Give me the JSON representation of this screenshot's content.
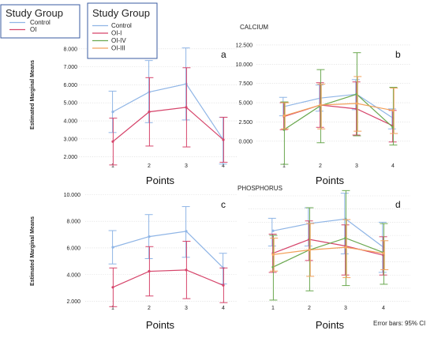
{
  "legends": [
    {
      "title": "Study Group",
      "items": [
        {
          "label": "Control",
          "color": "#8fb5e6"
        },
        {
          "label": "OI",
          "color": "#d6456b"
        }
      ]
    },
    {
      "title": "Study Group",
      "items": [
        {
          "label": "Control",
          "color": "#8fb5e6"
        },
        {
          "label": "OI-I",
          "color": "#d6456b"
        },
        {
          "label": "OI-IV",
          "color": "#6aa84f"
        },
        {
          "label": "OI-III",
          "color": "#f2a15c"
        }
      ]
    }
  ],
  "y_axis_label": "Estimated Marginal Means",
  "section_titles": {
    "calcium": "CALCIUM",
    "phosphorus": "PHOSPHORUS"
  },
  "error_bar_note": "Error bars: 95% CI",
  "chart_data": [
    {
      "panel": "a",
      "type": "line",
      "title": "",
      "xlabel": "Points",
      "ylabel": "Estimated Marginal Means",
      "x": [
        1,
        2,
        3,
        4
      ],
      "xticks": [
        "1",
        "2",
        "3",
        "4"
      ],
      "ylim": [
        1.5,
        8.3
      ],
      "yticks": [
        "2.000",
        "3.000",
        "4.000",
        "5.000",
        "6.000",
        "7.000",
        "8.000"
      ],
      "series": [
        {
          "name": "Control",
          "color": "#8fb5e6",
          "values": [
            4.5,
            5.6,
            6.05,
            2.95
          ],
          "ci": [
            [
              3.35,
              5.65
            ],
            [
              3.9,
              7.35
            ],
            [
              4.05,
              8.05
            ],
            [
              1.6,
              4.2
            ]
          ]
        },
        {
          "name": "OI",
          "color": "#d6456b",
          "values": [
            2.85,
            4.5,
            4.75,
            2.95
          ],
          "ci": [
            [
              1.55,
              4.15
            ],
            [
              2.6,
              6.4
            ],
            [
              2.55,
              6.95
            ],
            [
              1.7,
              4.2
            ]
          ]
        }
      ]
    },
    {
      "panel": "b",
      "type": "line",
      "title": "CALCIUM",
      "xlabel": "Points",
      "ylabel": "",
      "x": [
        1,
        2,
        3,
        4
      ],
      "xticks": [
        "1",
        "2",
        "3",
        "4"
      ],
      "ylim": [
        -3.2,
        12.7
      ],
      "yticks": [
        "0.000",
        "2.500",
        "5.000",
        "7.500",
        "10.000",
        "12.500"
      ],
      "series": [
        {
          "name": "Control",
          "color": "#8fb5e6",
          "values": [
            4.5,
            5.6,
            6.1,
            3.0
          ],
          "ci": [
            [
              3.3,
              5.7
            ],
            [
              3.9,
              7.3
            ],
            [
              4.1,
              8.0
            ],
            [
              1.6,
              4.2
            ]
          ]
        },
        {
          "name": "OI-I",
          "color": "#d6456b",
          "values": [
            3.2,
            4.7,
            4.2,
            2.0
          ],
          "ci": [
            [
              1.5,
              5.0
            ],
            [
              1.8,
              7.6
            ],
            [
              0.8,
              7.7
            ],
            [
              -0.1,
              4.0
            ]
          ]
        },
        {
          "name": "OI-IV",
          "color": "#6aa84f",
          "values": [
            1.5,
            4.6,
            6.1,
            1.8
          ],
          "ci": [
            [
              -3.0,
              5.1
            ],
            [
              -0.2,
              9.3
            ],
            [
              0.7,
              11.5
            ],
            [
              -0.5,
              7.0
            ]
          ]
        },
        {
          "name": "OI-III",
          "color": "#f2a15c",
          "values": [
            3.3,
            4.7,
            4.9,
            4.0
          ],
          "ci": [
            [
              1.6,
              5.0
            ],
            [
              1.6,
              7.4
            ],
            [
              1.3,
              8.4
            ],
            [
              1.0,
              6.9
            ]
          ]
        }
      ]
    },
    {
      "panel": "c",
      "type": "line",
      "title": "",
      "xlabel": "Points",
      "ylabel": "Estimated Marginal Means",
      "x": [
        1,
        2,
        3,
        4
      ],
      "xticks": [
        "1",
        "2",
        "3",
        "4"
      ],
      "ylim": [
        1.5,
        10.2
      ],
      "yticks": [
        "2.000",
        "4.000",
        "6.000",
        "8.000",
        "10.000"
      ],
      "series": [
        {
          "name": "Control",
          "color": "#8fb5e6",
          "values": [
            6.05,
            6.85,
            7.25,
            4.5
          ],
          "ci": [
            [
              4.8,
              7.3
            ],
            [
              5.2,
              8.5
            ],
            [
              5.3,
              9.1
            ],
            [
              3.3,
              5.6
            ]
          ]
        },
        {
          "name": "OI",
          "color": "#d6456b",
          "values": [
            3.05,
            4.25,
            4.35,
            3.2
          ],
          "ci": [
            [
              1.6,
              4.5
            ],
            [
              2.4,
              6.1
            ],
            [
              2.2,
              6.5
            ],
            [
              1.9,
              4.5
            ]
          ]
        }
      ]
    },
    {
      "panel": "d",
      "type": "line",
      "title": "PHOSPHORUS",
      "xlabel": "Points",
      "ylabel": "",
      "x": [
        1,
        2,
        3,
        4
      ],
      "xticks": [
        "1",
        "2",
        "3",
        "4"
      ],
      "ylim": [
        1.5,
        10.3
      ],
      "yticks": [],
      "series": [
        {
          "name": "Control",
          "color": "#8fb5e6",
          "values": [
            7.35,
            7.9,
            8.25,
            6.1
          ],
          "ci": [
            [
              6.2,
              8.3
            ],
            [
              6.2,
              9.1
            ],
            [
              5.6,
              10.2
            ],
            [
              4.2,
              8.0
            ]
          ]
        },
        {
          "name": "OI-I",
          "color": "#d6456b",
          "values": [
            5.65,
            6.7,
            6.2,
            5.5
          ],
          "ci": [
            [
              4.2,
              7.1
            ],
            [
              5.1,
              8.1
            ],
            [
              4.0,
              7.8
            ],
            [
              4.0,
              6.9
            ]
          ]
        },
        {
          "name": "OI-IV",
          "color": "#6aa84f",
          "values": [
            4.6,
            5.9,
            6.8,
            5.7
          ],
          "ci": [
            [
              2.1,
              7.0
            ],
            [
              2.8,
              9.1
            ],
            [
              3.2,
              10.4
            ],
            [
              3.3,
              7.9
            ]
          ]
        },
        {
          "name": "OI-III",
          "color": "#f2a15c",
          "values": [
            5.55,
            5.9,
            6.1,
            5.65
          ],
          "ci": [
            [
              4.3,
              6.8
            ],
            [
              3.9,
              7.9
            ],
            [
              3.8,
              8.2
            ],
            [
              4.4,
              6.6
            ]
          ]
        }
      ]
    }
  ]
}
